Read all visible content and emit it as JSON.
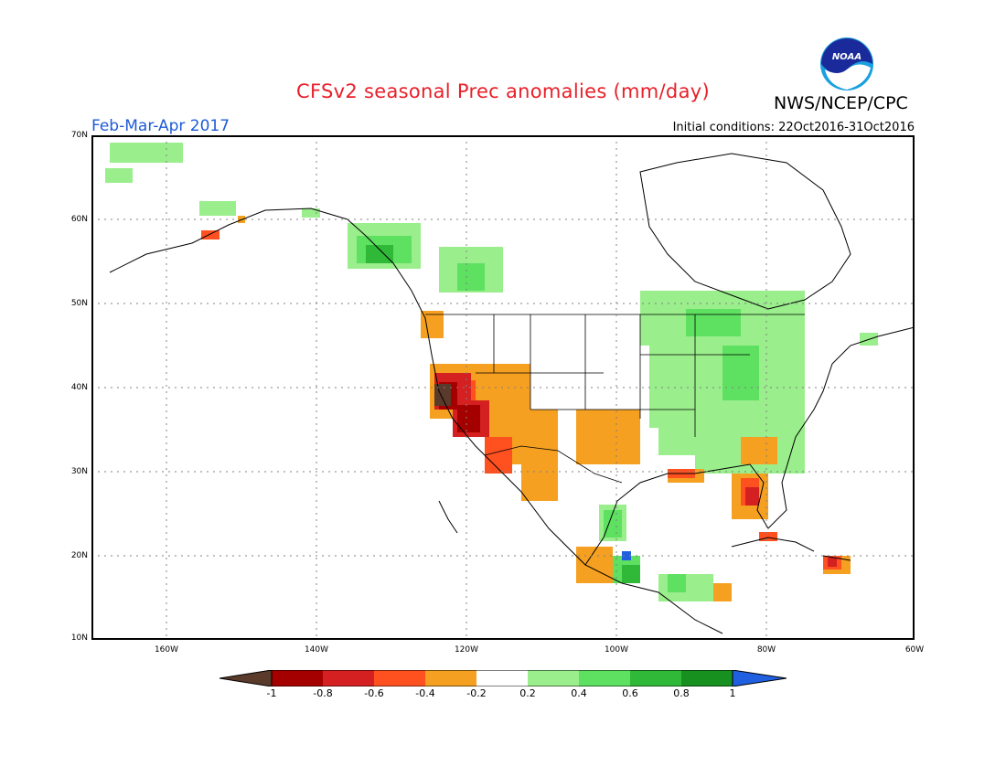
{
  "title": "CFSv2 seasonal Prec anomalies (mm/day)",
  "agency": "NWS/NCEP/CPC",
  "period": "Feb-Mar-Apr 2017",
  "initial_conditions": "Initial conditions: 22Oct2016-31Oct2016",
  "logo_text": "NOAA",
  "lat_labels": [
    "70N",
    "60N",
    "50N",
    "40N",
    "30N",
    "20N",
    "10N"
  ],
  "lon_labels": [
    "160W",
    "140W",
    "120W",
    "100W",
    "80W",
    "60W"
  ],
  "colorbar": {
    "labels": [
      "-1",
      "-0.8",
      "-0.6",
      "-0.4",
      "-0.2",
      "0.2",
      "0.4",
      "0.6",
      "0.8",
      "1"
    ],
    "colors": [
      "#5a3a2a",
      "#a50000",
      "#d42020",
      "#ff5020",
      "#f5a020",
      "#ffffff",
      "#9aee8c",
      "#5ee060",
      "#30b838",
      "#189020",
      "#2060e0"
    ]
  }
}
